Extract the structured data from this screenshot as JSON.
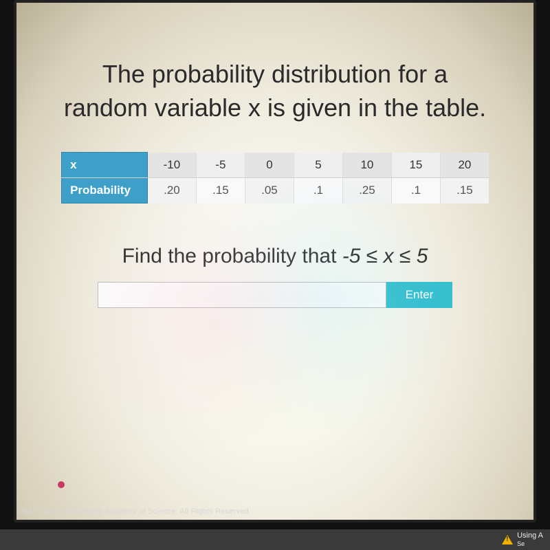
{
  "title_line1": "The probability distribution for a",
  "title_line2": "random variable x is given in the table.",
  "table": {
    "type": "table",
    "header_x": "x",
    "header_p": "Probability",
    "header_bg": "#3ea0c9",
    "header_fg": "#ffffff",
    "cell_bg_a": "#e4e4e4",
    "cell_bg_b": "#efefef",
    "p_cell_bg_a": "#f2f2f2",
    "p_cell_bg_b": "#f9f9f9",
    "border_color": "#cfcfcf",
    "font_size_pt": 13,
    "columns": [
      "-10",
      "-5",
      "0",
      "5",
      "10",
      "15",
      "20"
    ],
    "probabilities": [
      ".20",
      ".15",
      ".05",
      ".1",
      ".25",
      ".1",
      ".15"
    ]
  },
  "question_prefix": "Find the probability that ",
  "question_math": "-5 ≤ x ≤ 5",
  "answer": {
    "value": "",
    "placeholder": "",
    "input_bg": "#fbfbfb",
    "input_border": "#bdbdbd",
    "button_label": "Enter",
    "button_bg": "#39c0cf",
    "button_fg": "#ffffff"
  },
  "footer_text": "003 - 2022 International Academy of Science.  All Rights Reserved.",
  "statusbar": {
    "warning_text": "Using A",
    "warning_sub": "Se"
  },
  "palette": {
    "page_bg": "#f7f7f0",
    "text": "#2a2a2a",
    "accent": "#39c0cf"
  }
}
